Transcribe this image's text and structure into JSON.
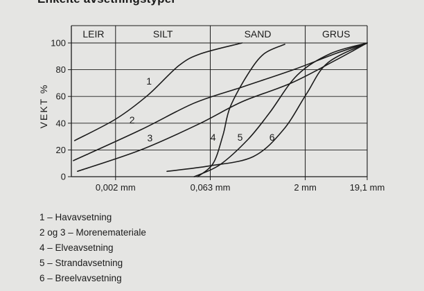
{
  "title": "Enkelte avsetningstyper",
  "chart_data": {
    "type": "line",
    "ylabel": "VEKT %",
    "xlabel": "",
    "xscale": "log",
    "ylim": [
      0,
      100
    ],
    "yticks": [
      0,
      20,
      40,
      60,
      80,
      100
    ],
    "xticks": [
      {
        "value": 0.002,
        "label": "0,002 mm"
      },
      {
        "value": 0.063,
        "label": "0,063 mm"
      },
      {
        "value": 2,
        "label": "2 mm"
      },
      {
        "value": 19.1,
        "label": "19,1 mm"
      }
    ],
    "grid": true,
    "fractions": [
      {
        "name": "LEIR",
        "from": 0.0004,
        "to": 0.002
      },
      {
        "name": "SILT",
        "from": 0.002,
        "to": 0.063
      },
      {
        "name": "SAND",
        "from": 0.063,
        "to": 2
      },
      {
        "name": "GRUS",
        "from": 2,
        "to": 19.1
      }
    ],
    "series": [
      {
        "name": "1",
        "points": [
          [
            0.00045,
            27
          ],
          [
            0.002,
            43
          ],
          [
            0.0065,
            61
          ],
          [
            0.02,
            83
          ],
          [
            0.045,
            92
          ],
          [
            0.2,
            100
          ]
        ]
      },
      {
        "name": "2",
        "points": [
          [
            0.00043,
            12
          ],
          [
            0.005,
            35
          ],
          [
            0.035,
            55
          ],
          [
            0.2,
            67
          ],
          [
            1.3,
            80
          ],
          [
            6,
            92
          ],
          [
            19.1,
            100
          ]
        ]
      },
      {
        "name": "3",
        "points": [
          [
            0.0005,
            4
          ],
          [
            0.005,
            20
          ],
          [
            0.04,
            39
          ],
          [
            0.2,
            56
          ],
          [
            1.2,
            70
          ],
          [
            6,
            87
          ],
          [
            19.1,
            100
          ]
        ]
      },
      {
        "name": "4",
        "points": [
          [
            0.04,
            0
          ],
          [
            0.07,
            10
          ],
          [
            0.1,
            31
          ],
          [
            0.13,
            52
          ],
          [
            0.25,
            77
          ],
          [
            0.45,
            92
          ],
          [
            0.95,
            99
          ]
        ]
      },
      {
        "name": "5",
        "points": [
          [
            0.035,
            0
          ],
          [
            0.09,
            9
          ],
          [
            0.25,
            28
          ],
          [
            0.55,
            48
          ],
          [
            1.5,
            76
          ],
          [
            5,
            92
          ],
          [
            19.1,
            100
          ]
        ]
      },
      {
        "name": "6",
        "points": [
          [
            0.013,
            4
          ],
          [
            0.06,
            8
          ],
          [
            0.3,
            15
          ],
          [
            0.9,
            35
          ],
          [
            2.1,
            62
          ],
          [
            4.5,
            85
          ],
          [
            19.1,
            100
          ]
        ]
      }
    ]
  },
  "legend": [
    "1 – Havavsetning",
    "2 og 3 – Morenemateriale",
    "4 – Elveavsetning",
    "5 – Strandavsetning",
    "6 – Breelvavsetning"
  ]
}
